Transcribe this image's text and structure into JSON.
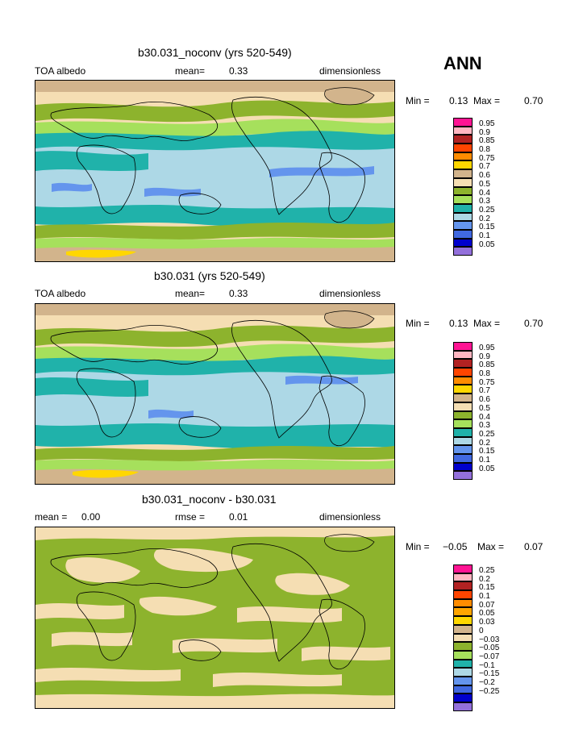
{
  "season": "ANN",
  "panels": [
    {
      "title": "b30.031_noconv (yrs 520-549)",
      "left": "TOA albedo",
      "mid_label": "mean=",
      "mid_value": "0.33",
      "right": "dimensionless",
      "min_label": "Min =",
      "min_value": "0.13",
      "max_label": "Max =",
      "max_value": "0.70",
      "legend": [
        {
          "label": "0.95",
          "color": "#ff1493"
        },
        {
          "label": "0.9",
          "color": "#ffb6c1"
        },
        {
          "label": "0.85",
          "color": "#b22222"
        },
        {
          "label": "0.8",
          "color": "#ff4500"
        },
        {
          "label": "0.75",
          "color": "#ff8c00"
        },
        {
          "label": "0.7",
          "color": "#ffd700"
        },
        {
          "label": "0.6",
          "color": "#d2b48c"
        },
        {
          "label": "0.5",
          "color": "#f5deb3"
        },
        {
          "label": "0.4",
          "color": "#8db32d"
        },
        {
          "label": "0.3",
          "color": "#a6e05c"
        },
        {
          "label": "0.25",
          "color": "#20b2aa"
        },
        {
          "label": "0.2",
          "color": "#add8e6"
        },
        {
          "label": "0.15",
          "color": "#6495ed"
        },
        {
          "label": "0.1",
          "color": "#4169e1"
        },
        {
          "label": "0.05",
          "color": "#0000cd"
        },
        {
          "label": "",
          "color": "#9370db"
        }
      ]
    },
    {
      "title": "b30.031 (yrs 520-549)",
      "left": "TOA albedo",
      "mid_label": "mean=",
      "mid_value": "0.33",
      "right": "dimensionless",
      "min_label": "Min =",
      "min_value": "0.13",
      "max_label": "Max =",
      "max_value": "0.70",
      "legend": [
        {
          "label": "0.95",
          "color": "#ff1493"
        },
        {
          "label": "0.9",
          "color": "#ffb6c1"
        },
        {
          "label": "0.85",
          "color": "#b22222"
        },
        {
          "label": "0.8",
          "color": "#ff4500"
        },
        {
          "label": "0.75",
          "color": "#ff8c00"
        },
        {
          "label": "0.7",
          "color": "#ffd700"
        },
        {
          "label": "0.6",
          "color": "#d2b48c"
        },
        {
          "label": "0.5",
          "color": "#f5deb3"
        },
        {
          "label": "0.4",
          "color": "#8db32d"
        },
        {
          "label": "0.3",
          "color": "#a6e05c"
        },
        {
          "label": "0.25",
          "color": "#20b2aa"
        },
        {
          "label": "0.2",
          "color": "#add8e6"
        },
        {
          "label": "0.15",
          "color": "#6495ed"
        },
        {
          "label": "0.1",
          "color": "#4169e1"
        },
        {
          "label": "0.05",
          "color": "#0000cd"
        },
        {
          "label": "",
          "color": "#9370db"
        }
      ]
    },
    {
      "title": "b30.031_noconv - b30.031",
      "left_label": "mean =",
      "left_value": "0.00",
      "mid_label": "rmse =",
      "mid_value": "0.01",
      "right": "dimensionless",
      "min_label": "Min =",
      "min_value": "−0.05",
      "max_label": "Max =",
      "max_value": "0.07",
      "legend": [
        {
          "label": "0.25",
          "color": "#ff1493"
        },
        {
          "label": "0.2",
          "color": "#ffb6c1"
        },
        {
          "label": "0.15",
          "color": "#b22222"
        },
        {
          "label": "0.1",
          "color": "#ff4500"
        },
        {
          "label": "0.07",
          "color": "#ff8c00"
        },
        {
          "label": "0.05",
          "color": "#ffa500"
        },
        {
          "label": "0.03",
          "color": "#ffd700"
        },
        {
          "label": "0",
          "color": "#d2b48c"
        },
        {
          "label": "−0.03",
          "color": "#f5deb3"
        },
        {
          "label": "−0.05",
          "color": "#8db32d"
        },
        {
          "label": "−0.07",
          "color": "#a6e05c"
        },
        {
          "label": "−0.1",
          "color": "#20b2aa"
        },
        {
          "label": "−0.15",
          "color": "#add8e6"
        },
        {
          "label": "−0.2",
          "color": "#6495ed"
        },
        {
          "label": "−0.25",
          "color": "#4169e1"
        },
        {
          "label": "",
          "color": "#0000cd"
        },
        {
          "label": "",
          "color": "#9370db"
        }
      ]
    }
  ],
  "chart_data": [
    {
      "type": "heatmap",
      "title": "b30.031_noconv (yrs 520-549)",
      "variable": "TOA albedo",
      "units": "dimensionless",
      "mean": 0.33,
      "min": 0.13,
      "max": 0.7,
      "levels": [
        0.05,
        0.1,
        0.15,
        0.2,
        0.25,
        0.3,
        0.4,
        0.5,
        0.6,
        0.7,
        0.75,
        0.8,
        0.85,
        0.9,
        0.95
      ]
    },
    {
      "type": "heatmap",
      "title": "b30.031 (yrs 520-549)",
      "variable": "TOA albedo",
      "units": "dimensionless",
      "mean": 0.33,
      "min": 0.13,
      "max": 0.7,
      "levels": [
        0.05,
        0.1,
        0.15,
        0.2,
        0.25,
        0.3,
        0.4,
        0.5,
        0.6,
        0.7,
        0.75,
        0.8,
        0.85,
        0.9,
        0.95
      ]
    },
    {
      "type": "heatmap",
      "title": "b30.031_noconv - b30.031",
      "units": "dimensionless",
      "mean": 0.0,
      "rmse": 0.01,
      "min": -0.05,
      "max": 0.07,
      "levels": [
        -0.25,
        -0.2,
        -0.15,
        -0.1,
        -0.07,
        -0.05,
        -0.03,
        0,
        0.03,
        0.05,
        0.07,
        0.1,
        0.15,
        0.2,
        0.25
      ]
    }
  ]
}
